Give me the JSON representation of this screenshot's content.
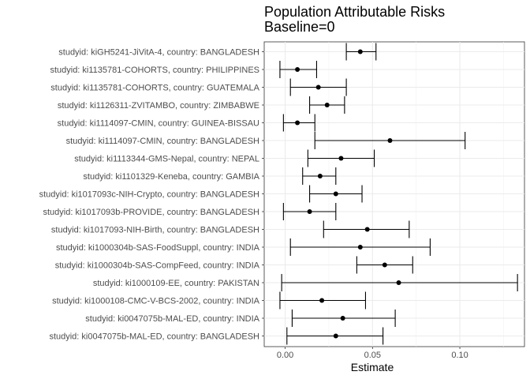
{
  "chart_data": {
    "type": "errorbar-dot",
    "title": "Population Attributable Risks",
    "subtitle": "Baseline=0",
    "xlabel": "Estimate",
    "ylabel": "",
    "xlim": [
      -0.012,
      0.137
    ],
    "xticks": [
      0.0,
      0.05,
      0.1
    ],
    "xtick_labels": [
      "0.00",
      "0.05",
      "0.10"
    ],
    "grid": true,
    "point_color": "#000000",
    "rows": [
      {
        "label": "studyid: kiGH5241-JiVitA-4, country: BANGLADESH",
        "estimate": 0.043,
        "lower": 0.035,
        "upper": 0.052
      },
      {
        "label": "studyid: ki1135781-COHORTS, country: PHILIPPINES",
        "estimate": 0.007,
        "lower": -0.003,
        "upper": 0.018
      },
      {
        "label": "studyid: ki1135781-COHORTS, country: GUATEMALA",
        "estimate": 0.019,
        "lower": 0.003,
        "upper": 0.035
      },
      {
        "label": "studyid: ki1126311-ZVITAMBO, country: ZIMBABWE",
        "estimate": 0.024,
        "lower": 0.014,
        "upper": 0.034
      },
      {
        "label": "studyid: ki1114097-CMIN, country: GUINEA-BISSAU",
        "estimate": 0.007,
        "lower": -0.001,
        "upper": 0.017
      },
      {
        "label": "studyid: ki1114097-CMIN, country: BANGLADESH",
        "estimate": 0.06,
        "lower": 0.017,
        "upper": 0.103
      },
      {
        "label": "studyid: ki1113344-GMS-Nepal, country: NEPAL",
        "estimate": 0.032,
        "lower": 0.013,
        "upper": 0.051
      },
      {
        "label": "studyid: ki1101329-Keneba, country: GAMBIA",
        "estimate": 0.02,
        "lower": 0.01,
        "upper": 0.029
      },
      {
        "label": "studyid: ki1017093c-NIH-Crypto, country: BANGLADESH",
        "estimate": 0.029,
        "lower": 0.014,
        "upper": 0.044
      },
      {
        "label": "studyid: ki1017093b-PROVIDE, country: BANGLADESH",
        "estimate": 0.014,
        "lower": -0.001,
        "upper": 0.029
      },
      {
        "label": "studyid: ki1017093-NIH-Birth, country: BANGLADESH",
        "estimate": 0.047,
        "lower": 0.022,
        "upper": 0.071
      },
      {
        "label": "studyid: ki1000304b-SAS-FoodSuppl, country: INDIA",
        "estimate": 0.043,
        "lower": 0.003,
        "upper": 0.083
      },
      {
        "label": "studyid: ki1000304b-SAS-CompFeed, country: INDIA",
        "estimate": 0.057,
        "lower": 0.041,
        "upper": 0.073
      },
      {
        "label": "studyid: ki1000109-EE, country: PAKISTAN",
        "estimate": 0.065,
        "lower": -0.002,
        "upper": 0.133
      },
      {
        "label": "studyid: ki1000108-CMC-V-BCS-2002, country: INDIA",
        "estimate": 0.021,
        "lower": -0.003,
        "upper": 0.046
      },
      {
        "label": "studyid: ki0047075b-MAL-ED, country: INDIA",
        "estimate": 0.033,
        "lower": 0.004,
        "upper": 0.063
      },
      {
        "label": "studyid: ki0047075b-MAL-ED, country: BANGLADESH",
        "estimate": 0.029,
        "lower": 0.001,
        "upper": 0.056
      }
    ]
  }
}
